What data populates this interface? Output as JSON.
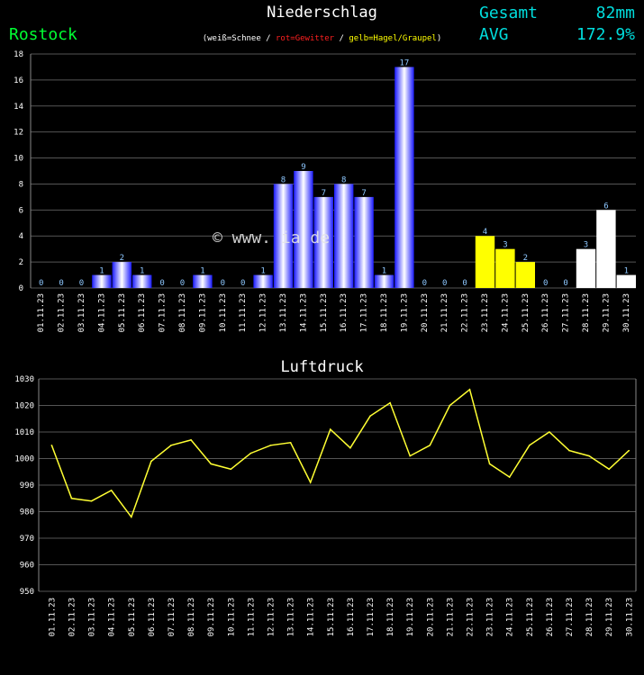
{
  "header": {
    "title": "Niederschlag",
    "station": "Rostock",
    "legend_open": "(",
    "legend_white": "weiß=Schnee",
    "legend_sep1": " / ",
    "legend_red": "rot=Gewitter",
    "legend_sep2": " / ",
    "legend_yellow": "gelb=Hagel/Graupel",
    "legend_close": ")",
    "gesamt_label": "Gesamt",
    "gesamt_value": "82mm",
    "avg_label": "AVG",
    "avg_value": "172.9%",
    "watermark": "© www.          ia  de"
  },
  "colors": {
    "rain": "#1a1aff",
    "snow": "#ffffff",
    "hail": "#ffff00",
    "pressure_line": "#ffff33",
    "grid": "#555555"
  },
  "chart_data": [
    {
      "type": "bar",
      "title": "Niederschlag",
      "categories": [
        "01.11.23",
        "02.11.23",
        "03.11.23",
        "04.11.23",
        "05.11.23",
        "06.11.23",
        "07.11.23",
        "08.11.23",
        "09.11.23",
        "10.11.23",
        "11.11.23",
        "12.11.23",
        "13.11.23",
        "14.11.23",
        "15.11.23",
        "16.11.23",
        "17.11.23",
        "18.11.23",
        "19.11.23",
        "20.11.23",
        "21.11.23",
        "22.11.23",
        "23.11.23",
        "24.11.23",
        "25.11.23",
        "26.11.23",
        "27.11.23",
        "28.11.23",
        "29.11.23",
        "30.11.23"
      ],
      "values": [
        0,
        0,
        0,
        1,
        2,
        1,
        0,
        0,
        1,
        0,
        0,
        1,
        8,
        9,
        7,
        8,
        7,
        1,
        17,
        0,
        0,
        0,
        4,
        3,
        2,
        0,
        0,
        3,
        6,
        1
      ],
      "bar_types": [
        "rain",
        "rain",
        "rain",
        "rain",
        "rain",
        "rain",
        "rain",
        "rain",
        "rain",
        "rain",
        "rain",
        "rain",
        "rain",
        "rain",
        "rain",
        "rain",
        "rain",
        "rain",
        "rain",
        "rain",
        "rain",
        "rain",
        "hail",
        "hail",
        "hail",
        "rain",
        "rain",
        "snow",
        "snow",
        "snow"
      ],
      "ylim": [
        0,
        18
      ],
      "yticks": [
        0,
        2,
        4,
        6,
        8,
        10,
        12,
        14,
        16,
        18
      ],
      "grid": true
    },
    {
      "type": "line",
      "title": "Luftdruck",
      "categories": [
        "01.11.23",
        "02.11.23",
        "03.11.23",
        "04.11.23",
        "05.11.23",
        "06.11.23",
        "07.11.23",
        "08.11.23",
        "09.11.23",
        "10.11.23",
        "11.11.23",
        "12.11.23",
        "13.11.23",
        "14.11.23",
        "15.11.23",
        "16.11.23",
        "17.11.23",
        "18.11.23",
        "19.11.23",
        "20.11.23",
        "21.11.23",
        "22.11.23",
        "23.11.23",
        "24.11.23",
        "25.11.23",
        "26.11.23",
        "27.11.23",
        "28.11.23",
        "29.11.23",
        "30.11.23"
      ],
      "values": [
        1005,
        985,
        984,
        988,
        978,
        999,
        1005,
        1007,
        998,
        996,
        1002,
        1005,
        1006,
        991,
        1011,
        1004,
        1016,
        1021,
        1001,
        1005,
        1020,
        1026,
        998,
        993,
        1005,
        1010,
        1003,
        1001,
        996,
        1003
      ],
      "ylim": [
        950,
        1030
      ],
      "yticks": [
        950,
        960,
        970,
        980,
        990,
        1000,
        1010,
        1020,
        1030
      ],
      "grid": true
    }
  ]
}
